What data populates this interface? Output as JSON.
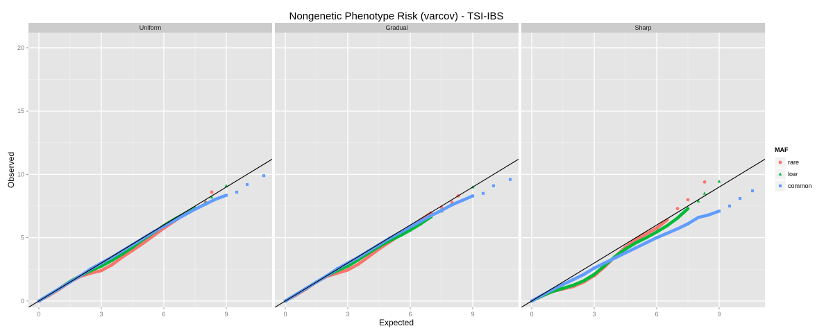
{
  "chart_data": {
    "type": "scatter",
    "title": "Nongenetic Phenotype Risk (varcov) - TSI-IBS",
    "xlabel": "Expected",
    "ylabel": "Observed",
    "xlim": [
      -0.5,
      11.2
    ],
    "ylim": [
      -0.5,
      21.2
    ],
    "x_ticks": [
      0,
      3,
      6,
      9
    ],
    "y_ticks": [
      0,
      5,
      10,
      15,
      20
    ],
    "grid": true,
    "reference_line": {
      "slope": 1,
      "intercept": 0,
      "color": "#000000"
    },
    "legend": {
      "title": "MAF",
      "position": "right",
      "entries": [
        {
          "name": "rare",
          "color": "#F8766D",
          "shape": "circle"
        },
        {
          "name": "low",
          "color": "#00BA38",
          "shape": "triangle"
        },
        {
          "name": "common",
          "color": "#619CFF",
          "shape": "square"
        }
      ]
    },
    "facets": [
      {
        "label": "Uniform",
        "series": [
          {
            "name": "rare",
            "points": [
              [
                0,
                0
              ],
              [
                0.5,
                0.45
              ],
              [
                1,
                0.95
              ],
              [
                1.5,
                1.5
              ],
              [
                2,
                1.95
              ],
              [
                2.5,
                2.2
              ],
              [
                3,
                2.4
              ],
              [
                3.5,
                2.85
              ],
              [
                4,
                3.45
              ],
              [
                4.5,
                4.0
              ],
              [
                5,
                4.55
              ],
              [
                5.5,
                5.15
              ],
              [
                6,
                5.75
              ],
              [
                6.5,
                6.3
              ],
              [
                7,
                6.85
              ],
              [
                7.5,
                7.35
              ],
              [
                8,
                7.8
              ],
              [
                8.3,
                8.6
              ]
            ]
          },
          {
            "name": "low",
            "points": [
              [
                0,
                0
              ],
              [
                0.5,
                0.5
              ],
              [
                1,
                1.0
              ],
              [
                1.5,
                1.55
              ],
              [
                2,
                2.0
              ],
              [
                2.5,
                2.4
              ],
              [
                3,
                2.75
              ],
              [
                3.5,
                3.2
              ],
              [
                4,
                3.7
              ],
              [
                4.5,
                4.25
              ],
              [
                5,
                4.85
              ],
              [
                5.5,
                5.4
              ],
              [
                6,
                5.95
              ],
              [
                6.5,
                6.45
              ],
              [
                7,
                6.9
              ],
              [
                7.5,
                7.35
              ],
              [
                8,
                7.8
              ],
              [
                8.3,
                8.2
              ],
              [
                9,
                9.1
              ]
            ]
          },
          {
            "name": "common",
            "points": [
              [
                0,
                0
              ],
              [
                0.5,
                0.5
              ],
              [
                1,
                1.0
              ],
              [
                1.5,
                1.5
              ],
              [
                2,
                2.0
              ],
              [
                2.5,
                2.55
              ],
              [
                3,
                3.0
              ],
              [
                3.5,
                3.45
              ],
              [
                4,
                3.95
              ],
              [
                4.5,
                4.45
              ],
              [
                5,
                4.95
              ],
              [
                5.5,
                5.45
              ],
              [
                6,
                5.9
              ],
              [
                6.5,
                6.35
              ],
              [
                7,
                6.8
              ],
              [
                7.5,
                7.25
              ],
              [
                8,
                7.65
              ],
              [
                8.5,
                8.05
              ],
              [
                9,
                8.35
              ],
              [
                9.5,
                8.6
              ],
              [
                10,
                9.2
              ],
              [
                10.8,
                9.9
              ]
            ]
          }
        ]
      },
      {
        "label": "Gradual",
        "series": [
          {
            "name": "rare",
            "points": [
              [
                0,
                0
              ],
              [
                0.5,
                0.45
              ],
              [
                1,
                0.95
              ],
              [
                1.5,
                1.5
              ],
              [
                2,
                1.95
              ],
              [
                2.5,
                2.2
              ],
              [
                3,
                2.45
              ],
              [
                3.5,
                2.9
              ],
              [
                4,
                3.5
              ],
              [
                4.5,
                4.1
              ],
              [
                5,
                4.65
              ],
              [
                5.5,
                5.2
              ],
              [
                6,
                5.8
              ],
              [
                6.5,
                6.4
              ],
              [
                7,
                6.95
              ],
              [
                7.5,
                7.4
              ],
              [
                8,
                7.8
              ],
              [
                8.3,
                8.3
              ]
            ]
          },
          {
            "name": "low",
            "points": [
              [
                0,
                0
              ],
              [
                0.5,
                0.5
              ],
              [
                1,
                1.0
              ],
              [
                1.5,
                1.5
              ],
              [
                2,
                2.0
              ],
              [
                2.5,
                2.4
              ],
              [
                3,
                2.75
              ],
              [
                3.5,
                3.25
              ],
              [
                4,
                3.8
              ],
              [
                4.5,
                4.3
              ],
              [
                5,
                4.75
              ],
              [
                5.5,
                5.15
              ],
              [
                6,
                5.6
              ],
              [
                6.5,
                6.1
              ],
              [
                7,
                6.65
              ],
              [
                7.5,
                7.1
              ],
              [
                8,
                7.6
              ],
              [
                9,
                9.0
              ]
            ]
          },
          {
            "name": "common",
            "points": [
              [
                0,
                0
              ],
              [
                0.5,
                0.5
              ],
              [
                1,
                1.0
              ],
              [
                1.5,
                1.5
              ],
              [
                2,
                2.0
              ],
              [
                2.5,
                2.55
              ],
              [
                3,
                3.0
              ],
              [
                3.5,
                3.45
              ],
              [
                4,
                3.95
              ],
              [
                4.5,
                4.45
              ],
              [
                5,
                4.95
              ],
              [
                5.5,
                5.4
              ],
              [
                6,
                5.85
              ],
              [
                6.5,
                6.3
              ],
              [
                7,
                6.75
              ],
              [
                7.5,
                7.15
              ],
              [
                8,
                7.6
              ],
              [
                8.5,
                7.95
              ],
              [
                9,
                8.3
              ],
              [
                9.5,
                8.5
              ],
              [
                10,
                9.1
              ],
              [
                10.8,
                9.6
              ]
            ]
          }
        ]
      },
      {
        "label": "Sharp",
        "series": [
          {
            "name": "rare",
            "points": [
              [
                0,
                0
              ],
              [
                0.5,
                0.4
              ],
              [
                1,
                0.75
              ],
              [
                1.5,
                0.95
              ],
              [
                2,
                1.15
              ],
              [
                2.5,
                1.5
              ],
              [
                3,
                2.0
              ],
              [
                3.5,
                2.7
              ],
              [
                4,
                3.5
              ],
              [
                4.5,
                4.25
              ],
              [
                5,
                4.85
              ],
              [
                5.5,
                5.3
              ],
              [
                6,
                5.75
              ],
              [
                6.5,
                6.4
              ],
              [
                7,
                7.3
              ],
              [
                7.5,
                8.0
              ],
              [
                8.3,
                9.4
              ]
            ]
          },
          {
            "name": "low",
            "points": [
              [
                0,
                0
              ],
              [
                0.5,
                0.4
              ],
              [
                1,
                0.75
              ],
              [
                1.5,
                1.0
              ],
              [
                2,
                1.25
              ],
              [
                2.5,
                1.6
              ],
              [
                3,
                2.1
              ],
              [
                3.5,
                2.8
              ],
              [
                4,
                3.5
              ],
              [
                4.5,
                4.1
              ],
              [
                5,
                4.6
              ],
              [
                5.5,
                5.0
              ],
              [
                6,
                5.45
              ],
              [
                6.5,
                5.95
              ],
              [
                7,
                6.55
              ],
              [
                7.5,
                7.3
              ],
              [
                8,
                7.9
              ],
              [
                8.3,
                8.5
              ],
              [
                9,
                9.45
              ]
            ]
          },
          {
            "name": "common",
            "points": [
              [
                0,
                0
              ],
              [
                0.5,
                0.45
              ],
              [
                1,
                0.9
              ],
              [
                1.5,
                1.3
              ],
              [
                2,
                1.7
              ],
              [
                2.5,
                2.1
              ],
              [
                3,
                2.6
              ],
              [
                3.5,
                3.0
              ],
              [
                4,
                3.4
              ],
              [
                4.5,
                3.8
              ],
              [
                5,
                4.2
              ],
              [
                5.5,
                4.6
              ],
              [
                6,
                5.0
              ],
              [
                6.5,
                5.35
              ],
              [
                7,
                5.7
              ],
              [
                7.5,
                6.1
              ],
              [
                8,
                6.6
              ],
              [
                8.5,
                6.8
              ],
              [
                9,
                7.1
              ],
              [
                9.5,
                7.5
              ],
              [
                10,
                8.1
              ],
              [
                10.6,
                8.7
              ]
            ]
          }
        ]
      }
    ]
  }
}
